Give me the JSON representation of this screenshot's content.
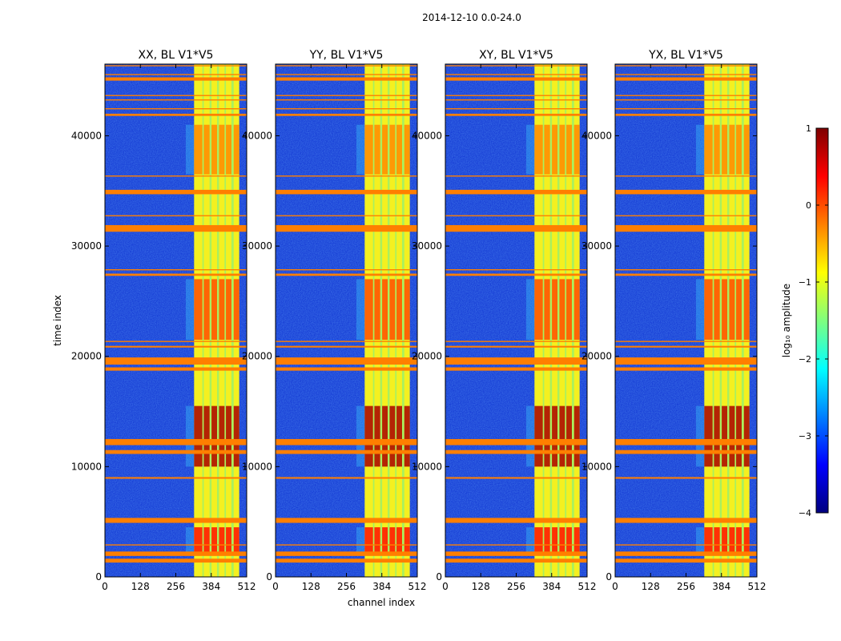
{
  "chart_data": {
    "type": "heatmap",
    "title": "2014-12-10 0.0-24.0",
    "xlabel": "channel index",
    "ylabel": "time index",
    "xlim": [
      0,
      512
    ],
    "ylim": [
      0,
      46500
    ],
    "xticks": [
      0,
      128,
      256,
      384,
      512
    ],
    "yticks": [
      0,
      10000,
      20000,
      30000,
      40000
    ],
    "colormap": "jet",
    "colorbar": {
      "label": "log₁₀ amplitude",
      "range": [
        -4,
        1
      ],
      "ticks": [
        1,
        0,
        -1,
        -2,
        -3,
        -4
      ],
      "tick_labels": [
        "1",
        "0",
        "−1",
        "−2",
        "−3",
        "−4"
      ]
    },
    "panels": [
      {
        "title": "XX, BL V1*V5",
        "polarization": "XX",
        "baseline": "V1*V5"
      },
      {
        "title": "YY, BL V1*V5",
        "polarization": "YY",
        "baseline": "V1*V5"
      },
      {
        "title": "XY, BL V1*V5",
        "polarization": "XY",
        "baseline": "V1*V5"
      },
      {
        "title": "YX, BL V1*V5",
        "polarization": "YX",
        "baseline": "V1*V5"
      }
    ],
    "signal_band_channels": [
      322,
      485
    ],
    "signal_sub_bands_channels": [
      [
        322,
        352
      ],
      [
        357,
        378
      ],
      [
        385,
        405
      ],
      [
        412,
        432
      ],
      [
        437,
        457
      ],
      [
        465,
        485
      ]
    ],
    "flagged_rows_time": [
      {
        "t0": 1300,
        "t1": 1650
      },
      {
        "t0": 1900,
        "t1": 2300
      },
      {
        "t0": 2850,
        "t1": 2950
      },
      {
        "t0": 4900,
        "t1": 5350
      },
      {
        "t0": 8900,
        "t1": 9050
      },
      {
        "t0": 11150,
        "t1": 11500
      },
      {
        "t0": 11950,
        "t1": 12500
      },
      {
        "t0": 18700,
        "t1": 19000
      },
      {
        "t0": 19250,
        "t1": 19900
      },
      {
        "t0": 20800,
        "t1": 20950
      },
      {
        "t0": 21300,
        "t1": 21400
      },
      {
        "t0": 27300,
        "t1": 27500
      },
      {
        "t0": 27800,
        "t1": 27900
      },
      {
        "t0": 31300,
        "t1": 31900
      },
      {
        "t0": 32700,
        "t1": 32800
      },
      {
        "t0": 34700,
        "t1": 35100
      },
      {
        "t0": 36300,
        "t1": 36400
      },
      {
        "t0": 41800,
        "t1": 42000
      },
      {
        "t0": 42400,
        "t1": 42500
      },
      {
        "t0": 43200,
        "t1": 43300
      },
      {
        "t0": 43600,
        "t1": 43700
      },
      {
        "t0": 45000,
        "t1": 45300
      },
      {
        "t0": 45500,
        "t1": 45600
      },
      {
        "t0": 46300,
        "t1": 46400
      }
    ],
    "high_amplitude_epochs_time": [
      {
        "t0": 10000,
        "t1": 15500,
        "level": 0.8
      },
      {
        "t0": 2000,
        "t1": 4500,
        "level": 0.3
      },
      {
        "t0": 21500,
        "t1": 27000,
        "level": 0.0
      },
      {
        "t0": 36500,
        "t1": 41000,
        "level": -0.3
      }
    ],
    "colors": {
      "flag": "#ff7f00",
      "background_low": "#0a2ccf",
      "background_mid": "#1f5cff",
      "band_yellow": "#f4f020",
      "band_green": "#a8f060",
      "hot": "#cc1010",
      "axis": "#000000"
    }
  }
}
